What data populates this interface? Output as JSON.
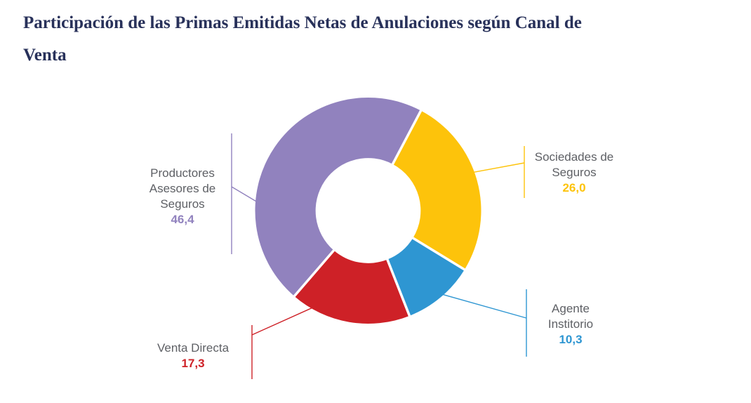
{
  "title": {
    "text": "Participación de las Primas Emitidas Netas de Anulaciones según Canal de Venta",
    "lines": [
      "Participación de las Primas Emitidas Netas de Anulaciones según Canal de",
      "Venta"
    ],
    "color": "#28315A"
  },
  "chart_data": {
    "type": "pie",
    "subtype": "donut",
    "title": "Participación de las Primas Emitidas Netas de Anulaciones según Canal de Venta",
    "categories": [
      "Productores Asesores de Seguros",
      "Sociedades de Seguros",
      "Agente Institorio",
      "Venta Directa"
    ],
    "values": [
      46.4,
      26.0,
      10.3,
      17.3
    ],
    "value_labels": [
      "46,4",
      "26,0",
      "10,3",
      "17,3"
    ],
    "colors": [
      "#9182BE",
      "#FDC30B",
      "#2E96D2",
      "#CE2127"
    ],
    "label_color": "#5E6065",
    "background": "#ffffff",
    "direction": "clockwise",
    "rotation_deg_clockwise_from_top": 220.8,
    "inner_radius_ratio": 0.465,
    "legend_position": "callout-labels",
    "callout_label_lines": [
      [
        "Productores",
        "Asesores de",
        "Seguros"
      ],
      [
        "Sociedades de",
        "Seguros"
      ],
      [
        "Agente",
        "Institorio"
      ],
      [
        "Venta Directa"
      ]
    ]
  }
}
